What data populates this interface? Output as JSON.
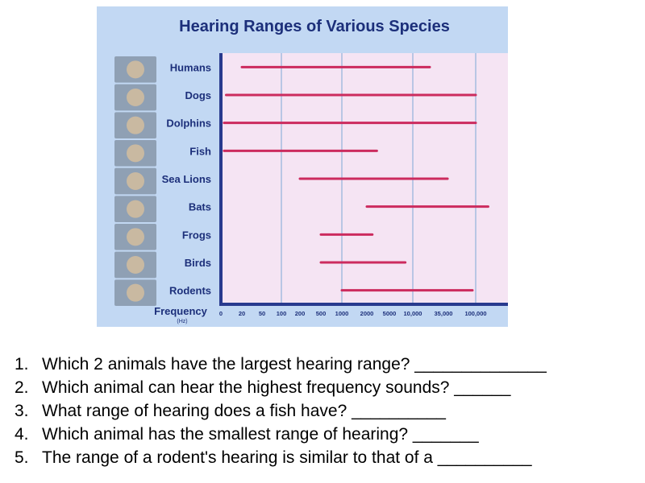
{
  "chart_data": {
    "type": "range-bar",
    "title": "Hearing Ranges of Various Species",
    "xlabel": "Frequency",
    "xunit": "(Hz)",
    "xticks": [
      "0",
      "20",
      "50",
      "100",
      "200",
      "500",
      "1000",
      "2000",
      "5000",
      "10,000",
      "35,000",
      "100,000"
    ],
    "categories": [
      "Humans",
      "Dogs",
      "Dolphins",
      "Fish",
      "Sea Lions",
      "Bats",
      "Frogs",
      "Birds",
      "Rodents"
    ],
    "ranges": [
      {
        "species": "Humans",
        "low": 20,
        "high": 20000
      },
      {
        "species": "Dogs",
        "low": 5,
        "high": 100000
      },
      {
        "species": "Dolphins",
        "low": 3,
        "high": 100000
      },
      {
        "species": "Fish",
        "low": 3,
        "high": 3000
      },
      {
        "species": "Sea Lions",
        "low": 200,
        "high": 40000
      },
      {
        "species": "Bats",
        "low": 2000,
        "high": 150000
      },
      {
        "species": "Frogs",
        "low": 500,
        "high": 2500
      },
      {
        "species": "Birds",
        "low": 500,
        "high": 8000
      },
      {
        "species": "Rodents",
        "low": 1000,
        "high": 90000
      }
    ],
    "colors": {
      "panel": "#c2d8f3",
      "plot": "#f5e4f3",
      "range_line": "#cc2b5e",
      "text": "#1c2f7a",
      "axis": "#283a8e",
      "grid": "#b9c6e4"
    }
  },
  "questions": [
    {
      "num": "1.",
      "text": "Which 2 animals have the largest hearing range? ______________"
    },
    {
      "num": "2.",
      "text": "Which animal can hear the highest frequency sounds? ______"
    },
    {
      "num": "3.",
      "text": "What range of hearing does a fish have? __________"
    },
    {
      "num": "4.",
      "text": "Which animal has the smallest range of hearing? _______"
    },
    {
      "num": "5.",
      "text": "The range of a rodent's hearing is similar to that of a __________"
    }
  ]
}
